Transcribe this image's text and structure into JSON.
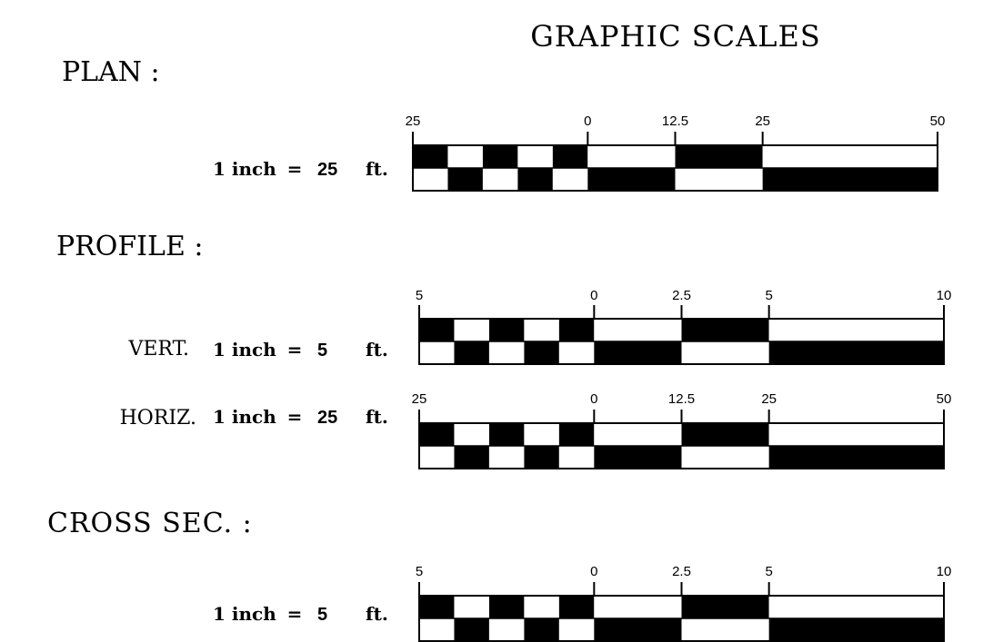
{
  "title": "GRAPHIC SCALES",
  "colors": {
    "ink": "#000000",
    "paper": "#ffffff"
  },
  "plan": {
    "heading": "PLAN :",
    "eq": "1 inch",
    "equals": "=",
    "value": "25",
    "unit": "ft.",
    "ticks": [
      "25",
      "0",
      "12.5",
      "25",
      "50"
    ]
  },
  "profile": {
    "heading": "PROFILE :",
    "vert": {
      "prefix": "VERT.",
      "eq": "1 inch",
      "equals": "=",
      "value": "5",
      "unit": "ft.",
      "ticks": [
        "5",
        "0",
        "2.5",
        "5",
        "10"
      ]
    },
    "horiz": {
      "prefix": "HORIZ.",
      "eq": "1 inch",
      "equals": "=",
      "value": "25",
      "unit": "ft.",
      "ticks": [
        "25",
        "0",
        "12.5",
        "25",
        "50"
      ]
    }
  },
  "cross": {
    "heading": "CROSS SEC. :",
    "eq": "1 inch",
    "equals": "=",
    "value": "5",
    "unit": "ft.",
    "ticks": [
      "5",
      "0",
      "2.5",
      "5",
      "10"
    ]
  }
}
